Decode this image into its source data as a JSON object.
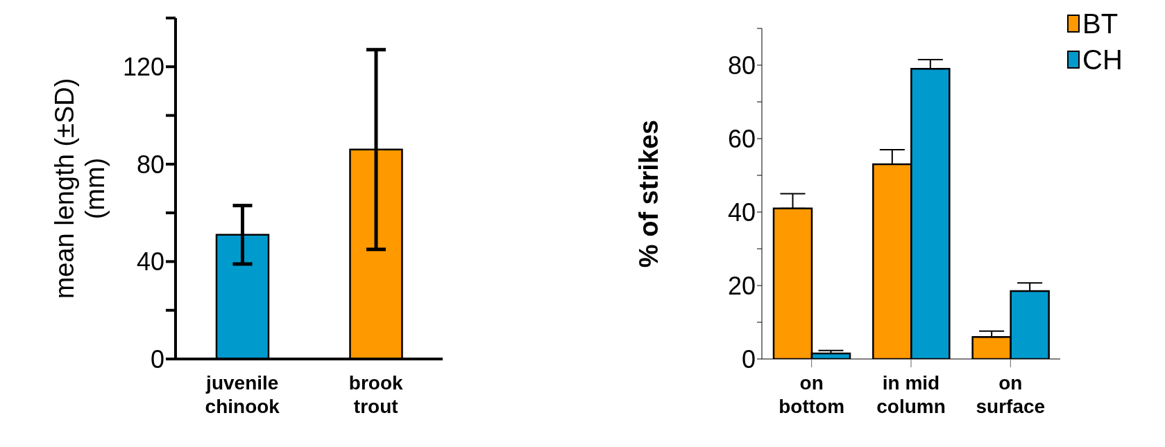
{
  "chart_data": [
    {
      "type": "bar",
      "ylabel": "mean length (±SD) (mm)",
      "categories": [
        "juvenile chinook",
        "brook trout"
      ],
      "values": [
        51,
        86
      ],
      "colors": [
        "#009acd",
        "#ff9900"
      ],
      "errors": [
        12,
        41
      ],
      "ylim": [
        0,
        140
      ],
      "yticks": [
        0,
        {
          "value": 20,
          "label": null
        },
        40,
        {
          "value": 60,
          "label": null
        },
        80,
        {
          "value": 100,
          "label": null
        },
        120,
        {
          "value": 140,
          "label": null
        }
      ]
    },
    {
      "type": "bar",
      "ylabel": "% of strikes",
      "categories": [
        "on bottom",
        "in mid column",
        "on surface"
      ],
      "legend": "top right",
      "series": [
        {
          "name": "BT",
          "color": "#ff9900",
          "values": [
            41,
            53,
            6
          ],
          "errors": [
            [
              41,
              45
            ],
            [
              53,
              57
            ],
            [
              6,
              7.6
            ]
          ]
        },
        {
          "name": "CH",
          "color": "#009acd",
          "values": [
            1.5,
            79,
            18.5
          ],
          "errors": [
            [
              1.5,
              2.3
            ],
            [
              79,
              81.5
            ],
            [
              18.5,
              20.7
            ]
          ]
        }
      ],
      "ylim": [
        0,
        90
      ],
      "yticks": [
        0,
        {
          "value": 10,
          "label": null
        },
        20,
        {
          "value": 30,
          "label": null
        },
        40,
        {
          "value": 50,
          "label": null
        },
        60,
        {
          "value": 70,
          "label": null
        },
        80,
        {
          "value": 90,
          "label": null
        }
      ]
    }
  ]
}
